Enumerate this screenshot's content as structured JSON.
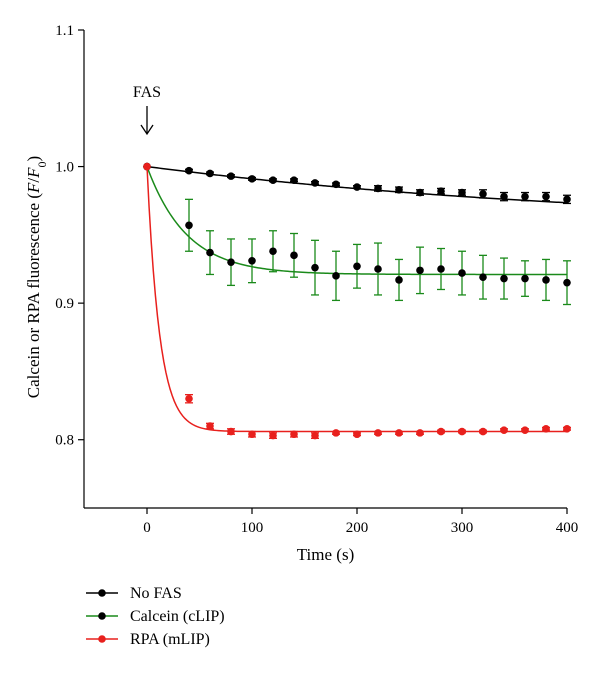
{
  "chart_data": {
    "type": "line",
    "xlabel": "Time (s)",
    "ylabel": {
      "prefix": "Calcein or RPA fluorescence (",
      "var": "F",
      "slash": "/",
      "var0": "F",
      "sub": "0",
      "suffix": ")"
    },
    "xlim": [
      -60,
      400
    ],
    "ylim": [
      0.75,
      1.1
    ],
    "xticks": [
      0,
      100,
      200,
      300,
      400
    ],
    "yticks": [
      0.8,
      0.9,
      1.0,
      1.1
    ],
    "ytick_labels": [
      "0.8",
      "0.9",
      "1.0",
      "1.1"
    ],
    "annotation": {
      "text": "FAS",
      "x": 0
    },
    "legend": {
      "position": "bottom-left"
    },
    "x": [
      0,
      40,
      60,
      80,
      100,
      120,
      140,
      160,
      180,
      200,
      220,
      240,
      260,
      280,
      300,
      320,
      340,
      360,
      380,
      400
    ],
    "series": [
      {
        "name": "No FAS",
        "color": "#000000",
        "values": [
          1.0,
          0.997,
          0.995,
          0.993,
          0.991,
          0.99,
          0.99,
          0.988,
          0.987,
          0.985,
          0.984,
          0.983,
          0.981,
          0.982,
          0.981,
          0.98,
          0.978,
          0.978,
          0.978,
          0.976
        ],
        "errors": [
          0,
          0.001,
          0.001,
          0.001,
          0.001,
          0.001,
          0.001,
          0.001,
          0.001,
          0.001,
          0.002,
          0.002,
          0.002,
          0.002,
          0.002,
          0.003,
          0.003,
          0.003,
          0.003,
          0.003
        ],
        "fit": {
          "plateau": 0.955,
          "amp": 0.045,
          "tau": 450
        }
      },
      {
        "name": "Calcein (cLIP)",
        "color": "#1a8a1a",
        "values": [
          1.0,
          0.957,
          0.937,
          0.93,
          0.931,
          0.938,
          0.935,
          0.926,
          0.92,
          0.927,
          0.925,
          0.917,
          0.924,
          0.925,
          0.922,
          0.919,
          0.918,
          0.918,
          0.917,
          0.915
        ],
        "errors": [
          0,
          0.019,
          0.016,
          0.017,
          0.016,
          0.015,
          0.016,
          0.02,
          0.018,
          0.016,
          0.019,
          0.015,
          0.017,
          0.015,
          0.016,
          0.016,
          0.015,
          0.013,
          0.015,
          0.016
        ],
        "fit": {
          "plateau": 0.921,
          "amp": 0.079,
          "tau": 38
        }
      },
      {
        "name": "RPA (mLIP)",
        "color": "#e8201d",
        "values": [
          1.0,
          0.83,
          0.81,
          0.806,
          0.804,
          0.803,
          0.804,
          0.803,
          0.805,
          0.804,
          0.805,
          0.805,
          0.805,
          0.806,
          0.806,
          0.806,
          0.807,
          0.807,
          0.808,
          0.808
        ],
        "errors": [
          0,
          0.003,
          0.002,
          0.002,
          0.002,
          0.002,
          0.002,
          0.002,
          0.001,
          0.001,
          0.001,
          0.001,
          0.001,
          0.001,
          0.001,
          0.001,
          0.001,
          0.001,
          0.001,
          0.001
        ],
        "fit": {
          "plateau": 0.806,
          "amp": 0.194,
          "tau": 12
        }
      }
    ]
  }
}
